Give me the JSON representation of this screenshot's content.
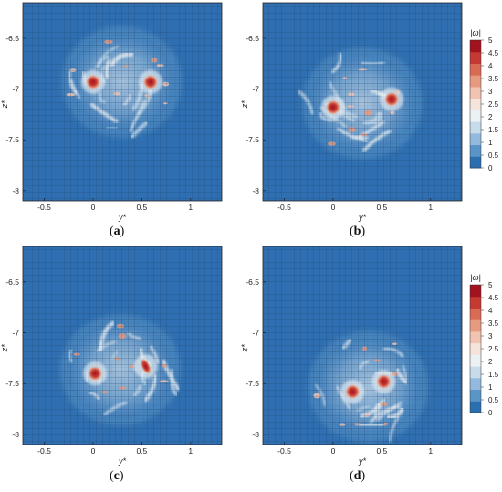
{
  "figure": {
    "colorbar_title": "|ω|",
    "colorbar_ticks": [
      "5",
      "4.5",
      "4",
      "3.5",
      "3",
      "2.5",
      "2",
      "1.5",
      "1",
      "0.5",
      "0"
    ],
    "colormap": [
      "#2a6fb0",
      "#5a95c8",
      "#93bade",
      "#c8dbea",
      "#ecf1f4",
      "#f4e4dc",
      "#f1c3b1",
      "#e69a80",
      "#d96b55",
      "#c43a33",
      "#a3121f"
    ],
    "background_color": "#2f6fb1",
    "grid_color": "#16325a",
    "core_color": "#c21f22",
    "x_ticks": [
      "-0.5",
      "0",
      "0.5",
      "1"
    ],
    "y_ticks": [
      "-6.5",
      "-7",
      "-7.5",
      "-8"
    ],
    "x_label": "y*",
    "y_label": "z*"
  },
  "panels": [
    {
      "id": "a",
      "caption_open": "(",
      "caption_letter": "a",
      "caption_close": ")",
      "cores": [
        {
          "y": 0.0,
          "z": -6.93,
          "s": "big"
        },
        {
          "y": 0.59,
          "z": -6.93,
          "s": "big"
        }
      ],
      "filaments": []
    },
    {
      "id": "b",
      "caption_open": "(",
      "caption_letter": "b",
      "caption_close": ")",
      "cores": [
        {
          "y": 0.0,
          "z": -7.18,
          "s": "big"
        },
        {
          "y": 0.6,
          "z": -7.1,
          "s": "big"
        }
      ],
      "filaments": []
    },
    {
      "id": "c",
      "caption_open": "(",
      "caption_letter": "c",
      "caption_close": ")",
      "cores": [
        {
          "y": 0.02,
          "z": -7.4,
          "s": "big"
        },
        {
          "y": 0.54,
          "z": -7.33,
          "s": "elong"
        }
      ],
      "filaments": []
    },
    {
      "id": "d",
      "caption_open": "(",
      "caption_letter": "d",
      "caption_close": ")",
      "cores": [
        {
          "y": 0.2,
          "z": -7.58,
          "s": "big"
        },
        {
          "y": 0.52,
          "z": -7.48,
          "s": "big"
        }
      ],
      "filaments": []
    }
  ],
  "chart_data": [
    {
      "type": "heatmap",
      "panel": "a",
      "xlabel": "y*",
      "ylabel": "z*",
      "xlim": [
        -0.72,
        1.32
      ],
      "ylim": [
        -8.1,
        -6.15
      ],
      "colorbar": {
        "label": "|ω|",
        "range": [
          0,
          5
        ]
      },
      "vortex_cores": [
        {
          "y": 0.0,
          "z": -6.93,
          "peak": 5
        },
        {
          "y": 0.59,
          "z": -6.93,
          "peak": 5
        }
      ]
    },
    {
      "type": "heatmap",
      "panel": "b",
      "xlabel": "y*",
      "ylabel": "z*",
      "xlim": [
        -0.72,
        1.32
      ],
      "ylim": [
        -8.1,
        -6.15
      ],
      "colorbar": {
        "label": "|ω|",
        "range": [
          0,
          5
        ]
      },
      "vortex_cores": [
        {
          "y": 0.0,
          "z": -7.18,
          "peak": 5
        },
        {
          "y": 0.6,
          "z": -7.1,
          "peak": 5
        }
      ]
    },
    {
      "type": "heatmap",
      "panel": "c",
      "xlabel": "y*",
      "ylabel": "z*",
      "xlim": [
        -0.72,
        1.32
      ],
      "ylim": [
        -8.1,
        -6.15
      ],
      "vortex_cores": [
        {
          "y": 0.02,
          "z": -7.4,
          "peak": 5
        },
        {
          "y": 0.54,
          "z": -7.33,
          "peak": 5
        }
      ]
    },
    {
      "type": "heatmap",
      "panel": "d",
      "xlabel": "y*",
      "ylabel": "z*",
      "xlim": [
        -0.72,
        1.32
      ],
      "ylim": [
        -8.1,
        -6.15
      ],
      "colorbar": {
        "label": "|ω|",
        "range": [
          0,
          5
        ]
      },
      "vortex_cores": [
        {
          "y": 0.2,
          "z": -7.58,
          "peak": 5
        },
        {
          "y": 0.52,
          "z": -7.48,
          "peak": 5
        }
      ]
    }
  ]
}
